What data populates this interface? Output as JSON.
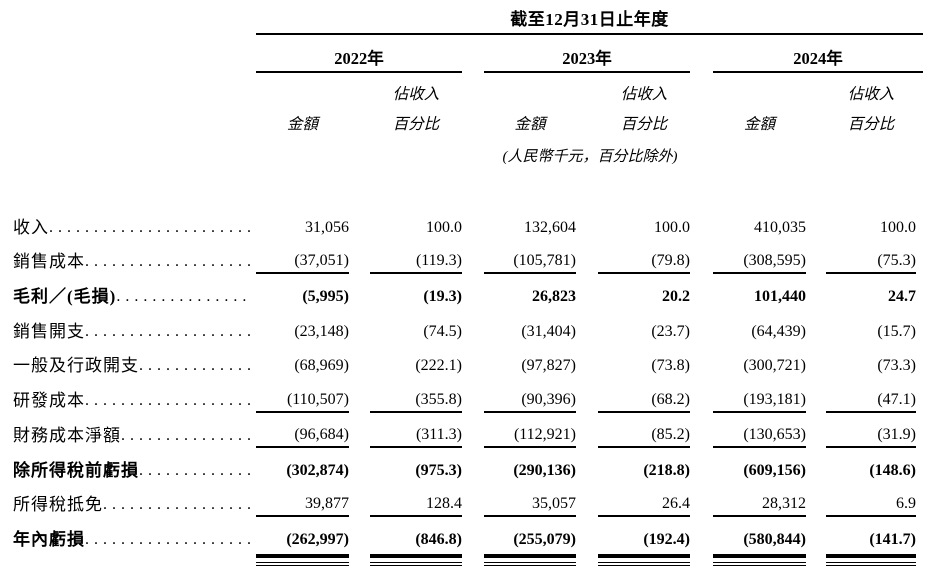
{
  "header": {
    "title": "截至12月31日止年度",
    "years": [
      "2022年",
      "2023年",
      "2024年"
    ],
    "col_amount_label": "金額",
    "col_pct_label_line1": "佔收入",
    "col_pct_label_line2": "百分比",
    "unit_note": "(人民幣千元，百分比除外)"
  },
  "rows": [
    {
      "label": "收入",
      "dots": ".......................",
      "bold": false,
      "rule": "none",
      "values": [
        "31,056",
        "100.0",
        "132,604",
        "100.0",
        "410,035",
        "100.0"
      ]
    },
    {
      "label": "銷售成本",
      "dots": " ...................",
      "bold": false,
      "rule": "single",
      "values": [
        "(37,051)",
        "(119.3)",
        "(105,781)",
        "(79.8)",
        "(308,595)",
        "(75.3)"
      ]
    },
    {
      "label": "毛利／(毛損)",
      "dots": " ...............",
      "bold": true,
      "rule": "none",
      "values": [
        "(5,995)",
        "(19.3)",
        "26,823",
        "20.2",
        "101,440",
        "24.7"
      ]
    },
    {
      "label": "銷售開支",
      "dots": " ...................",
      "bold": false,
      "rule": "none",
      "values": [
        "(23,148)",
        "(74.5)",
        "(31,404)",
        "(23.7)",
        "(64,439)",
        "(15.7)"
      ]
    },
    {
      "label": "一般及行政開支",
      "dots": "..............",
      "bold": false,
      "rule": "none",
      "values": [
        "(68,969)",
        "(222.1)",
        "(97,827)",
        "(73.8)",
        "(300,721)",
        "(73.3)"
      ]
    },
    {
      "label": "研發成本",
      "dots": " ...................",
      "bold": false,
      "rule": "single",
      "values": [
        "(110,507)",
        "(355.8)",
        "(90,396)",
        "(68.2)",
        "(193,181)",
        "(47.1)"
      ]
    },
    {
      "label": "財務成本淨額",
      "dots": "................",
      "bold": false,
      "rule": "single",
      "values": [
        "(96,684)",
        "(311.3)",
        "(112,921)",
        "(85.2)",
        "(130,653)",
        "(31.9)"
      ]
    },
    {
      "label": "除所得稅前虧損",
      "dots": "..............",
      "bold": true,
      "rule": "none",
      "values": [
        "(302,874)",
        "(975.3)",
        "(290,136)",
        "(218.8)",
        "(609,156)",
        "(148.6)"
      ]
    },
    {
      "label": "所得稅抵免",
      "dots": " .................",
      "bold": false,
      "rule": "single",
      "values": [
        "39,877",
        "128.4",
        "35,057",
        "26.4",
        "28,312",
        "6.9"
      ]
    },
    {
      "label": "年內虧損",
      "dots": " ...................",
      "bold": true,
      "rule": "double",
      "values": [
        "(262,997)",
        "(846.8)",
        "(255,079)",
        "(192.4)",
        "(580,844)",
        "(141.7)"
      ]
    }
  ]
}
